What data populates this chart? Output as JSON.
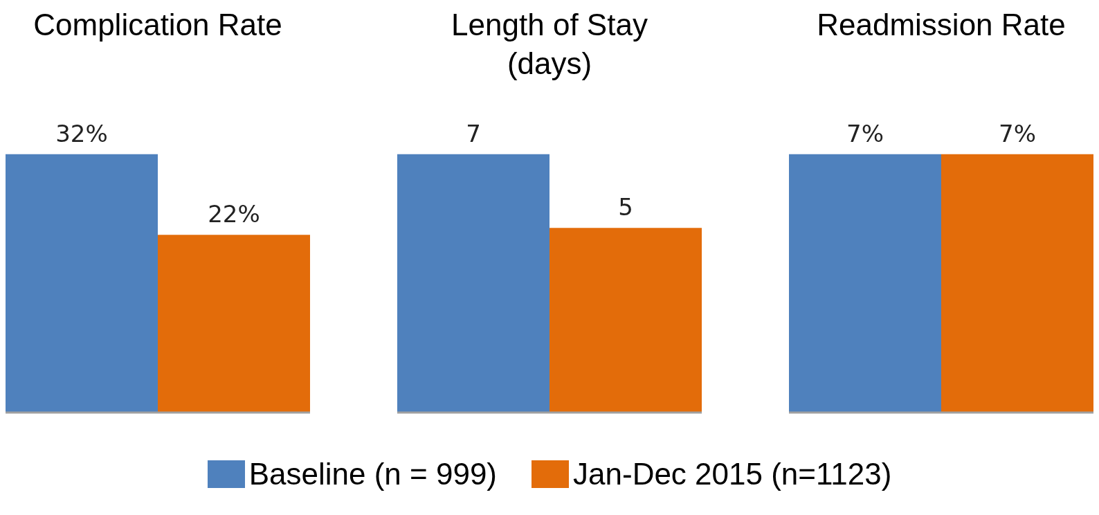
{
  "chart_data": [
    {
      "type": "bar",
      "title": "Complication Rate",
      "categories": [
        null
      ],
      "legend": "bottom",
      "series": [
        {
          "name": "Baseline (n = 999)",
          "color": "#4f81bd",
          "values": [
            32
          ],
          "value_labels": [
            "32%"
          ]
        },
        {
          "name": "Jan-Dec 2015 (n=1123)",
          "color": "#e36c0a",
          "values": [
            22
          ],
          "value_labels": [
            "22%"
          ]
        }
      ]
    },
    {
      "type": "bar",
      "title": "Length of Stay (days)",
      "categories": [
        null
      ],
      "data_labels": true,
      "series": [
        {
          "color": "#4f81bd",
          "values": [
            7
          ]
        },
        {
          "color": "#e36c0a",
          "values": [
            5
          ]
        }
      ]
    },
    {
      "type": "bar",
      "title": "Readmission Rate",
      "categories": [
        null
      ],
      "series": [
        {
          "color": "#4f81bd",
          "values": [
            7
          ],
          "value_labels": [
            "7%"
          ]
        },
        {
          "color": "#e36c0a",
          "values": [
            7
          ],
          "value_labels": [
            "7%"
          ]
        }
      ]
    }
  ]
}
